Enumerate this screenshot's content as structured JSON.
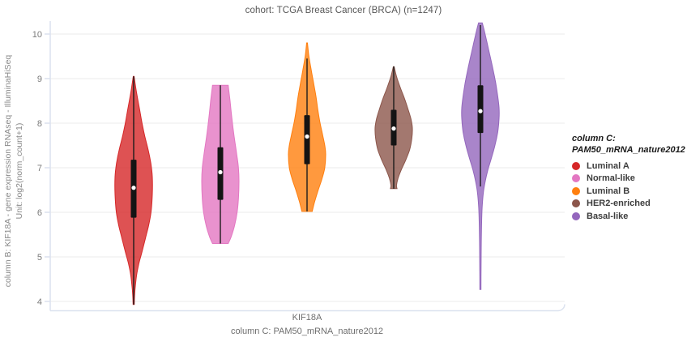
{
  "title": "cohort: TCGA Breast Cancer (BRCA) (n=1247)",
  "y_axis": {
    "label_line1": "column B: KIF18A - gene expression RNAseq - IlluminaHiSeq",
    "label_line2": "Unit: log2(norm_count+1)",
    "ticks": [
      10,
      9,
      8,
      7,
      6,
      5,
      4
    ]
  },
  "x_axis": {
    "tick_label": "KIF18A",
    "title": "column C: PAM50_mRNA_nature2012"
  },
  "legend": {
    "title_line1": "column C:",
    "title_line2": "PAM50_mRNA_nature2012",
    "items": [
      {
        "label": "Luminal A",
        "color": "#d62728"
      },
      {
        "label": "Normal-like",
        "color": "#e377c2"
      },
      {
        "label": "Luminal B",
        "color": "#ff7f0e"
      },
      {
        "label": "HER2-enriched",
        "color": "#8c564b"
      },
      {
        "label": "Basal-like",
        "color": "#9467bd"
      }
    ]
  },
  "chart_data": {
    "type": "violin",
    "title": "cohort: TCGA Breast Cancer (BRCA) (n=1247)",
    "xlabel": "column C: PAM50_mRNA_nature2012",
    "ylabel": "column B: KIF18A - gene expression RNAseq - IlluminaHiSeq Unit: log2(norm_count+1)",
    "x_category": "KIF18A",
    "ylim": [
      3.8,
      10.35
    ],
    "y_ticks": [
      4,
      5,
      6,
      7,
      8,
      9,
      10
    ],
    "grid": true,
    "legend_position": "right",
    "series": [
      {
        "name": "Luminal A",
        "color": "#d62728",
        "min": 3.93,
        "max": 9.05,
        "q1": 5.88,
        "median": 6.55,
        "q3": 7.18,
        "range_line": [
          3.93,
          9.05
        ],
        "profile": [
          [
            9.05,
            0.02
          ],
          [
            8.7,
            0.15
          ],
          [
            8.3,
            0.32
          ],
          [
            8.0,
            0.45
          ],
          [
            7.7,
            0.6
          ],
          [
            7.4,
            0.78
          ],
          [
            7.1,
            0.92
          ],
          [
            6.8,
            1.0
          ],
          [
            6.4,
            1.0
          ],
          [
            6.0,
            0.93
          ],
          [
            5.7,
            0.8
          ],
          [
            5.4,
            0.62
          ],
          [
            5.1,
            0.44
          ],
          [
            4.85,
            0.28
          ],
          [
            4.6,
            0.16
          ],
          [
            4.35,
            0.09
          ],
          [
            4.15,
            0.05
          ],
          [
            3.93,
            0.03
          ]
        ]
      },
      {
        "name": "Normal-like",
        "color": "#e377c2",
        "min": 5.3,
        "max": 8.85,
        "q1": 6.28,
        "median": 6.9,
        "q3": 7.46,
        "range_line": [
          5.3,
          8.85
        ],
        "profile": [
          [
            8.85,
            0.42
          ],
          [
            8.5,
            0.52
          ],
          [
            8.1,
            0.62
          ],
          [
            7.7,
            0.74
          ],
          [
            7.3,
            0.88
          ],
          [
            7.0,
            0.97
          ],
          [
            6.7,
            1.0
          ],
          [
            6.3,
            0.97
          ],
          [
            6.0,
            0.9
          ],
          [
            5.7,
            0.76
          ],
          [
            5.45,
            0.58
          ],
          [
            5.3,
            0.42
          ]
        ]
      },
      {
        "name": "Luminal B",
        "color": "#ff7f0e",
        "min": 6.02,
        "max": 9.8,
        "q1": 7.08,
        "median": 7.7,
        "q3": 8.18,
        "range_line": [
          6.02,
          9.45
        ],
        "profile": [
          [
            9.8,
            0.02
          ],
          [
            9.5,
            0.1
          ],
          [
            9.2,
            0.22
          ],
          [
            8.9,
            0.35
          ],
          [
            8.6,
            0.48
          ],
          [
            8.3,
            0.58
          ],
          [
            8.0,
            0.7
          ],
          [
            7.75,
            0.83
          ],
          [
            7.5,
            0.95
          ],
          [
            7.3,
            1.0
          ],
          [
            7.0,
            0.95
          ],
          [
            6.75,
            0.8
          ],
          [
            6.5,
            0.6
          ],
          [
            6.3,
            0.45
          ],
          [
            6.15,
            0.35
          ],
          [
            6.02,
            0.28
          ]
        ]
      },
      {
        "name": "HER2-enriched",
        "color": "#8c564b",
        "min": 6.53,
        "max": 9.27,
        "q1": 7.5,
        "median": 7.88,
        "q3": 8.3,
        "range_line": [
          6.53,
          9.27
        ],
        "profile": [
          [
            9.27,
            0.02
          ],
          [
            9.05,
            0.15
          ],
          [
            8.8,
            0.35
          ],
          [
            8.55,
            0.58
          ],
          [
            8.3,
            0.78
          ],
          [
            8.1,
            0.92
          ],
          [
            7.9,
            1.0
          ],
          [
            7.65,
            0.97
          ],
          [
            7.4,
            0.85
          ],
          [
            7.15,
            0.62
          ],
          [
            6.95,
            0.4
          ],
          [
            6.75,
            0.22
          ],
          [
            6.6,
            0.15
          ],
          [
            6.53,
            0.18
          ]
        ]
      },
      {
        "name": "Basal-like",
        "color": "#9467bd",
        "min": 4.27,
        "max": 10.25,
        "q1": 7.78,
        "median": 8.27,
        "q3": 8.85,
        "range_line": [
          6.58,
          10.2
        ],
        "profile": [
          [
            10.25,
            0.1
          ],
          [
            10.05,
            0.22
          ],
          [
            9.8,
            0.36
          ],
          [
            9.5,
            0.52
          ],
          [
            9.2,
            0.68
          ],
          [
            8.9,
            0.82
          ],
          [
            8.6,
            0.93
          ],
          [
            8.35,
            1.0
          ],
          [
            8.1,
            1.0
          ],
          [
            7.8,
            0.93
          ],
          [
            7.5,
            0.78
          ],
          [
            7.2,
            0.58
          ],
          [
            6.95,
            0.4
          ],
          [
            6.7,
            0.26
          ],
          [
            6.45,
            0.16
          ],
          [
            6.1,
            0.09
          ],
          [
            5.7,
            0.06
          ],
          [
            5.2,
            0.045
          ],
          [
            4.7,
            0.035
          ],
          [
            4.27,
            0.03
          ]
        ]
      }
    ]
  }
}
